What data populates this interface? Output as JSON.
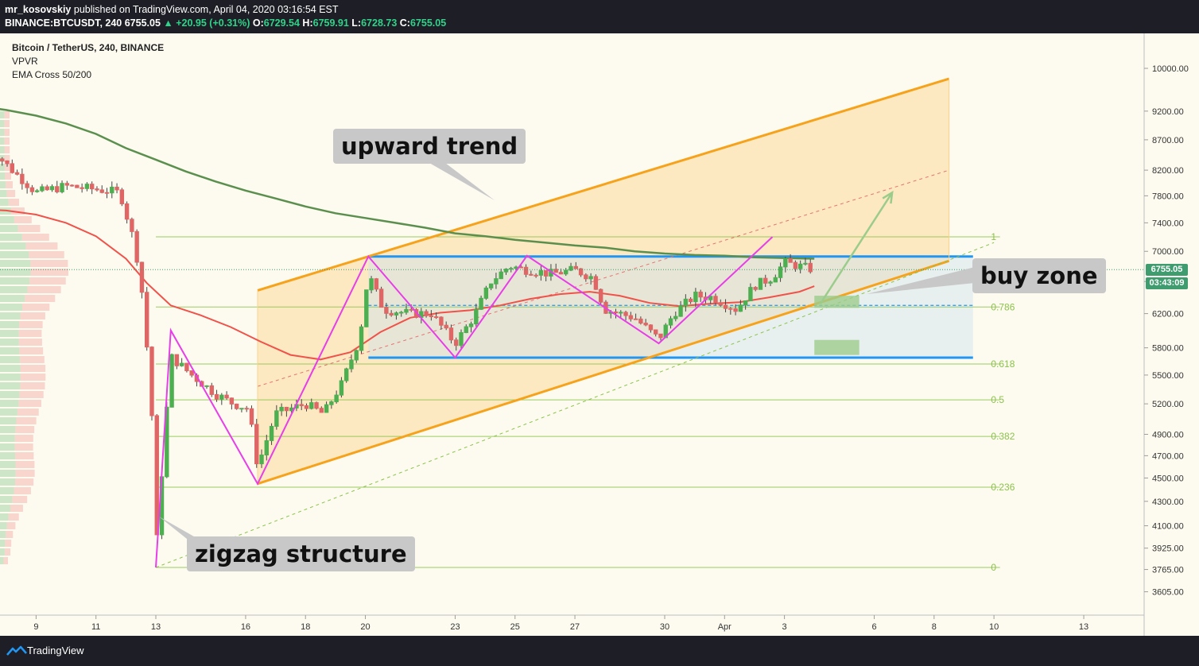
{
  "header": {
    "author": "mr_kosovskiy",
    "published": "published on TradingView.com, April 04, 2020 03:16:54 EST",
    "symbol_line": "BINANCE:BTCUSDT, 240",
    "last": "6755.05",
    "change": "▲ +20.95 (+0.31%)",
    "o_label": "O:",
    "o": "6729.54",
    "h_label": "H:",
    "h": "6759.91",
    "l_label": "L:",
    "l": "6728.73",
    "c_label": "C:",
    "c": "6755.05"
  },
  "legend": {
    "title": "Bitcoin / TetherUS, 240, BINANCE",
    "indicator1": "VPVR",
    "indicator2": "EMA Cross 50/200"
  },
  "callouts": {
    "upward_trend": "upward trend",
    "buy_zone": "buy zone",
    "zigzag": "zigzag structure"
  },
  "price_tags": {
    "last_price": "6755.05",
    "countdown": "03:43:09"
  },
  "footer": {
    "brand": "TradingView"
  },
  "colors": {
    "up": "#4caf50",
    "down": "#e06666",
    "ema50": "#f0524a",
    "ema200": "#5b8f4e",
    "channel": "#f7a21b",
    "zigzag": "#e83ee8",
    "range": "#2196f3",
    "fib": "#8bc34a"
  },
  "chart_data": {
    "type": "candlestick",
    "title": "Bitcoin / TetherUS, 240, BINANCE",
    "y_scale": "log",
    "ylim": [
      3500,
      10400
    ],
    "y_ticks": [
      10000,
      9200,
      8700,
      8200,
      7800,
      7400,
      7000,
      6600,
      6200,
      5800,
      5500,
      5200,
      4900,
      4700,
      4500,
      4300,
      4100,
      3925,
      3765,
      3605
    ],
    "y_tick_labels": [
      "10000.00",
      "9200.00",
      "8700.00",
      "8200.00",
      "7800.00",
      "7400.00",
      "7000.00",
      "6600.00",
      "6200.00",
      "5800.00",
      "5500.00",
      "5200.00",
      "4900.00",
      "4700.00",
      "4500.00",
      "4300.00",
      "4100.00",
      "3925.00",
      "3765.00",
      "3605.00"
    ],
    "x_ticks": [
      {
        "label": "9",
        "day": 9
      },
      {
        "label": "11",
        "day": 11
      },
      {
        "label": "13",
        "day": 13
      },
      {
        "label": "16",
        "day": 16
      },
      {
        "label": "18",
        "day": 18
      },
      {
        "label": "20",
        "day": 20
      },
      {
        "label": "23",
        "day": 23
      },
      {
        "label": "25",
        "day": 25
      },
      {
        "label": "27",
        "day": 27
      },
      {
        "label": "30",
        "day": 30
      },
      {
        "label": "Apr",
        "day": 32
      },
      {
        "label": "3",
        "day": 34
      },
      {
        "label": "6",
        "day": 37
      },
      {
        "label": "8",
        "day": 39
      },
      {
        "label": "10",
        "day": 41
      },
      {
        "label": "13",
        "day": 44
      }
    ],
    "last_price": 6755.05,
    "fib_levels": [
      {
        "label": "1",
        "price": 7200
      },
      {
        "label": "0.786",
        "price": 6280
      },
      {
        "label": "0.618",
        "price": 5620
      },
      {
        "label": "0.5",
        "price": 5240
      },
      {
        "label": "0.382",
        "price": 4880
      },
      {
        "label": "0.236",
        "price": 4420
      },
      {
        "label": "0",
        "price": 3780
      }
    ],
    "range_box": {
      "top": 6930,
      "bottom": 5690
    },
    "channel": {
      "upper": [
        [
          20.1,
          6930
        ],
        [
          39.5,
          9800
        ]
      ],
      "lower": [
        [
          16.4,
          4450
        ],
        [
          39.5,
          6870
        ]
      ],
      "mid_dashed": [
        [
          16.4,
          5380
        ],
        [
          39.5,
          8200
        ]
      ],
      "extended_dashed": [
        [
          13.0,
          3780
        ],
        [
          41.0,
          7120
        ]
      ]
    },
    "zigzag": [
      [
        13.0,
        3780
      ],
      [
        13.5,
        6000
      ],
      [
        16.4,
        4450
      ],
      [
        20.1,
        6930
      ],
      [
        23.0,
        5690
      ],
      [
        25.4,
        6940
      ],
      [
        29.8,
        5850
      ],
      [
        33.6,
        7200
      ]
    ],
    "projection_arrow": [
      [
        35.2,
        6320
      ],
      [
        37.6,
        7850
      ]
    ],
    "buy_zones": [
      {
        "from_day": 35.0,
        "to_day": 36.5,
        "top": 6420,
        "bottom": 6270
      },
      {
        "from_day": 35.0,
        "to_day": 36.5,
        "top": 5890,
        "bottom": 5720
      }
    ],
    "ema50": [
      [
        7.2,
        7600
      ],
      [
        8,
        7580
      ],
      [
        9,
        7520
      ],
      [
        10,
        7400
      ],
      [
        11,
        7210
      ],
      [
        12,
        6900
      ],
      [
        12.7,
        6580
      ],
      [
        13.5,
        6300
      ],
      [
        14.5,
        6180
      ],
      [
        15.5,
        6040
      ],
      [
        16.5,
        5870
      ],
      [
        17.5,
        5720
      ],
      [
        18.5,
        5670
      ],
      [
        19.5,
        5750
      ],
      [
        20.5,
        5980
      ],
      [
        21.5,
        6150
      ],
      [
        22.5,
        6210
      ],
      [
        23.5,
        6240
      ],
      [
        24.5,
        6300
      ],
      [
        25.5,
        6380
      ],
      [
        26.5,
        6440
      ],
      [
        27.5,
        6470
      ],
      [
        28.5,
        6420
      ],
      [
        29.5,
        6330
      ],
      [
        30.5,
        6290
      ],
      [
        31.5,
        6320
      ],
      [
        32.5,
        6340
      ],
      [
        33.5,
        6400
      ],
      [
        34.5,
        6470
      ],
      [
        35.0,
        6540
      ]
    ],
    "ema200": [
      [
        7.2,
        9280
      ],
      [
        8,
        9220
      ],
      [
        9,
        9120
      ],
      [
        10,
        8980
      ],
      [
        11,
        8800
      ],
      [
        12,
        8560
      ],
      [
        13,
        8370
      ],
      [
        14,
        8180
      ],
      [
        15,
        8020
      ],
      [
        16,
        7880
      ],
      [
        17,
        7760
      ],
      [
        18,
        7640
      ],
      [
        19,
        7540
      ],
      [
        20,
        7470
      ],
      [
        21,
        7400
      ],
      [
        22,
        7330
      ],
      [
        23,
        7250
      ],
      [
        24,
        7210
      ],
      [
        25,
        7160
      ],
      [
        26,
        7120
      ],
      [
        27,
        7080
      ],
      [
        28,
        7050
      ],
      [
        29,
        7000
      ],
      [
        30,
        6970
      ],
      [
        31,
        6950
      ],
      [
        32,
        6940
      ],
      [
        33,
        6920
      ],
      [
        34,
        6910
      ],
      [
        35.0,
        6900
      ]
    ]
  }
}
